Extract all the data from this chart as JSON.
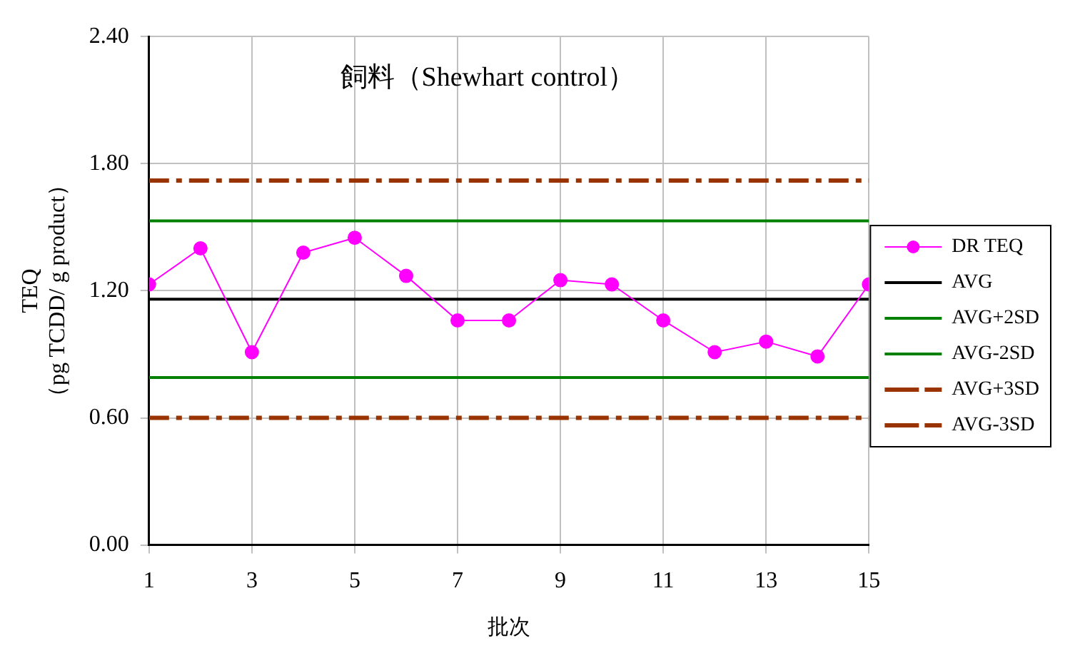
{
  "chart_data": {
    "type": "line",
    "title": "飼料（Shewhart control）",
    "xlabel": "批次",
    "ylabel": "TEQ\n（pg TCDD/ g product）",
    "x": [
      1,
      2,
      3,
      4,
      5,
      6,
      7,
      8,
      9,
      10,
      11,
      12,
      13,
      14,
      15
    ],
    "xlim": [
      1,
      15
    ],
    "xticks": [
      1,
      3,
      5,
      7,
      9,
      11,
      13,
      15
    ],
    "ylim": [
      0,
      2.4
    ],
    "yticks": [
      {
        "value": 0,
        "label": "0.00"
      },
      {
        "value": 0.6,
        "label": "0.60"
      },
      {
        "value": 1.2,
        "label": "1.20"
      },
      {
        "value": 1.8,
        "label": "1.80"
      },
      {
        "value": 2.4,
        "label": "2.40"
      }
    ],
    "grid": true,
    "legend": "right",
    "series": [
      {
        "name": "DR TEQ",
        "color": "#ff00ff",
        "marker": "circle",
        "line_style": "solid",
        "values": [
          1.23,
          1.4,
          0.91,
          1.38,
          1.45,
          1.27,
          1.06,
          1.06,
          1.25,
          1.23,
          1.06,
          0.91,
          0.96,
          0.89,
          1.23
        ]
      },
      {
        "name": "AVG",
        "color": "#000000",
        "marker": "none",
        "line_style": "solid",
        "values": [
          1.16,
          1.16,
          1.16,
          1.16,
          1.16,
          1.16,
          1.16,
          1.16,
          1.16,
          1.16,
          1.16,
          1.16,
          1.16,
          1.16,
          1.16
        ]
      },
      {
        "name": "AVG+2SD",
        "color": "#008000",
        "marker": "none",
        "line_style": "solid",
        "values": [
          1.53,
          1.53,
          1.53,
          1.53,
          1.53,
          1.53,
          1.53,
          1.53,
          1.53,
          1.53,
          1.53,
          1.53,
          1.53,
          1.53,
          1.53
        ]
      },
      {
        "name": "AVG-2SD",
        "color": "#008000",
        "marker": "none",
        "line_style": "solid",
        "values": [
          0.79,
          0.79,
          0.79,
          0.79,
          0.79,
          0.79,
          0.79,
          0.79,
          0.79,
          0.79,
          0.79,
          0.79,
          0.79,
          0.79,
          0.79
        ]
      },
      {
        "name": "AVG+3SD",
        "color": "#993300",
        "marker": "none",
        "line_style": "dashdot",
        "values": [
          1.72,
          1.72,
          1.72,
          1.72,
          1.72,
          1.72,
          1.72,
          1.72,
          1.72,
          1.72,
          1.72,
          1.72,
          1.72,
          1.72,
          1.72
        ]
      },
      {
        "name": "AVG-3SD",
        "color": "#993300",
        "marker": "none",
        "line_style": "dashdot",
        "values": [
          0.6,
          0.6,
          0.6,
          0.6,
          0.6,
          0.6,
          0.6,
          0.6,
          0.6,
          0.6,
          0.6,
          0.6,
          0.6,
          0.6,
          0.6
        ]
      }
    ]
  }
}
